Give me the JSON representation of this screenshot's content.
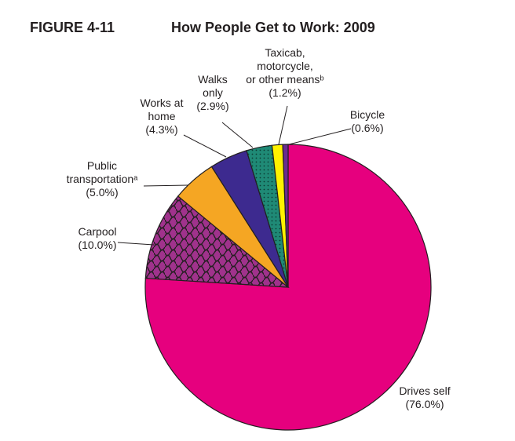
{
  "figure": {
    "number": "FIGURE 4-11",
    "title": "How People Get to Work: 2009"
  },
  "chart_data": {
    "type": "pie",
    "title": "How People Get to Work: 2009",
    "start": "12 o'clock",
    "direction": "clockwise",
    "slices": [
      {
        "key": "drives-self",
        "label_lines": [
          "Drives self"
        ],
        "percent_text": "(76.0%)",
        "value": 76.0,
        "color": "#e6007e",
        "pattern": "none"
      },
      {
        "key": "carpool",
        "label_lines": [
          "Carpool"
        ],
        "percent_text": "(10.0%)",
        "value": 10.0,
        "color": "#a0328c",
        "pattern": "squiggle"
      },
      {
        "key": "public-transportation",
        "label_lines": [
          "Public",
          "transportationᵃ"
        ],
        "percent_text": "(5.0%)",
        "value": 5.0,
        "color": "#f5a623",
        "pattern": "none"
      },
      {
        "key": "works-at-home",
        "label_lines": [
          "Works at",
          "home"
        ],
        "percent_text": "(4.3%)",
        "value": 4.3,
        "color": "#3d2a8f",
        "pattern": "none"
      },
      {
        "key": "walks-only",
        "label_lines": [
          "Walks",
          "only"
        ],
        "percent_text": "(2.9%)",
        "value": 2.9,
        "color": "#1f8a76",
        "pattern": "dots"
      },
      {
        "key": "taxicab-motorcycle-other",
        "label_lines": [
          "Taxicab,",
          "motorcycle,",
          "or other meansᵇ"
        ],
        "percent_text": "(1.2%)",
        "value": 1.2,
        "color": "#fff200",
        "pattern": "none"
      },
      {
        "key": "bicycle",
        "label_lines": [
          "Bicycle"
        ],
        "percent_text": "(0.6%)",
        "value": 0.6,
        "color": "#6a2c91",
        "pattern": "none"
      }
    ]
  }
}
